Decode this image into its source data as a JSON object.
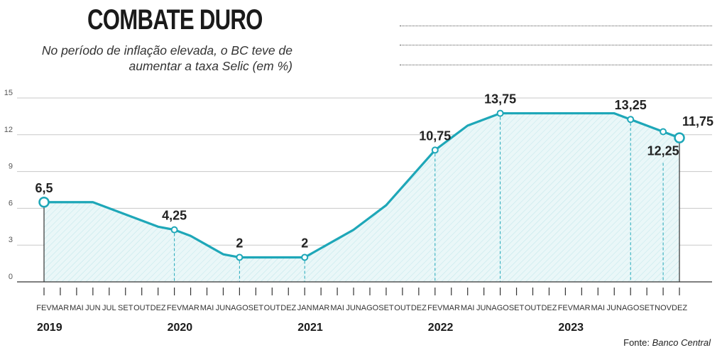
{
  "title": "COMBATE DURO",
  "subtitle": "No período de inflação elevada, o BC teve de aumentar a taxa Selic (em %)",
  "source_label": "Fonte:",
  "source_name": "Banco Central",
  "colors": {
    "line": "#1ea7b8",
    "fill": "#e3f5f7",
    "axis": "#333333",
    "grid": "#c8c8c8"
  },
  "chart_data": {
    "type": "line",
    "title": "COMBATE DURO",
    "subtitle": "No período de inflação elevada, o BC teve de aumentar a taxa Selic (em %)",
    "xlabel": "",
    "ylabel": "",
    "ylim": [
      0,
      15
    ],
    "yticks": [
      0,
      3,
      6,
      9,
      12,
      15
    ],
    "grid": true,
    "months": [
      "FEV",
      "MAR",
      "MAI",
      "JUN",
      "JUL",
      "SET",
      "OUT",
      "DEZ",
      "FEV",
      "MAR",
      "MAI",
      "JUN",
      "AGO",
      "SET",
      "OUT",
      "DEZ",
      "JAN",
      "MAR",
      "MAI",
      "JUN",
      "AGO",
      "SET",
      "OUT",
      "DEZ",
      "FEV",
      "MAR",
      "MAI",
      "JUN",
      "AGO",
      "SET",
      "OUT",
      "DEZ",
      "FEV",
      "MAR",
      "MAI",
      "JUN",
      "AGO",
      "SET",
      "NOV",
      "DEZ"
    ],
    "years": [
      {
        "label": "2019",
        "start_index": 0
      },
      {
        "label": "2020",
        "start_index": 8
      },
      {
        "label": "2021",
        "start_index": 16
      },
      {
        "label": "2022",
        "start_index": 24
      },
      {
        "label": "2023",
        "start_index": 32
      }
    ],
    "series": [
      {
        "values": [
          6.5,
          6.5,
          6.5,
          6.5,
          6.0,
          5.5,
          5.0,
          4.5,
          4.25,
          3.75,
          3.0,
          2.25,
          2.0,
          2.0,
          2.0,
          2.0,
          2.0,
          2.75,
          3.5,
          4.25,
          5.25,
          6.25,
          7.75,
          9.25,
          10.75,
          11.75,
          12.75,
          13.25,
          13.75,
          13.75,
          13.75,
          13.75,
          13.75,
          13.75,
          13.75,
          13.75,
          13.25,
          12.75,
          12.25,
          11.75
        ]
      }
    ],
    "annotations": [
      {
        "index": 0,
        "label": "6,5",
        "position": "above"
      },
      {
        "index": 8,
        "label": "4,25",
        "position": "above"
      },
      {
        "index": 12,
        "label": "2",
        "position": "above"
      },
      {
        "index": 16,
        "label": "2",
        "position": "above"
      },
      {
        "index": 24,
        "label": "10,75",
        "position": "above"
      },
      {
        "index": 28,
        "label": "13,75",
        "position": "above"
      },
      {
        "index": 36,
        "label": "13,25",
        "position": "above"
      },
      {
        "index": 38,
        "label": "12,25",
        "position": "below"
      },
      {
        "index": 39,
        "label": "11,75",
        "position": "above-right"
      }
    ]
  }
}
